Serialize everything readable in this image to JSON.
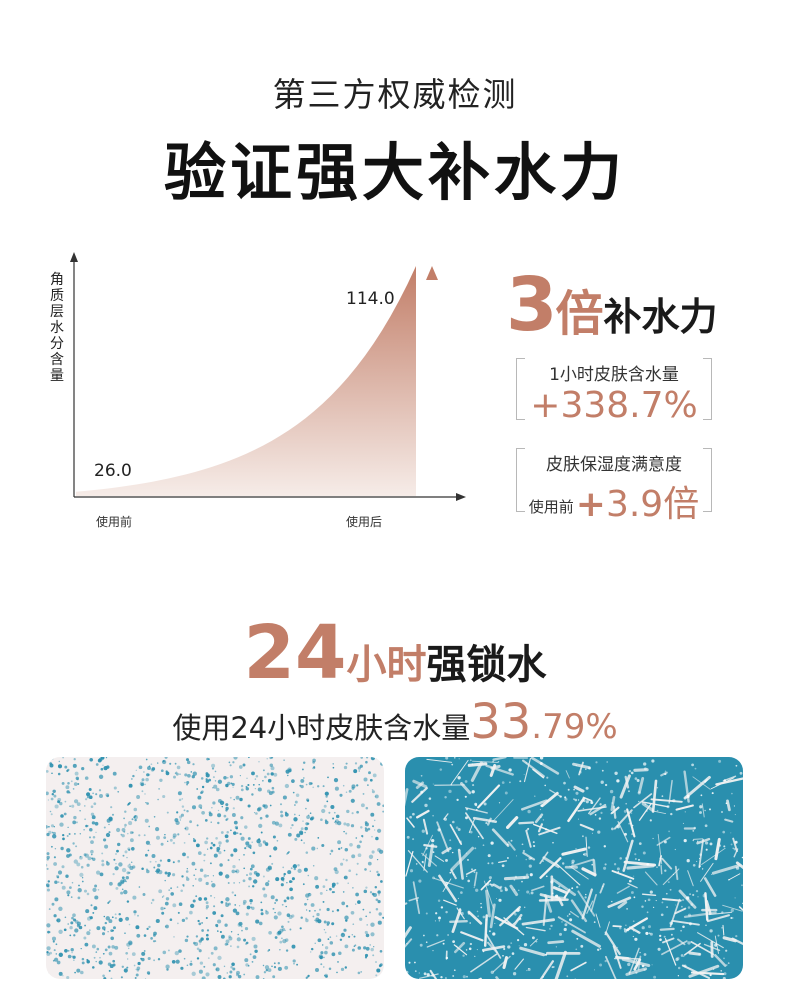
{
  "header": {
    "subtitle": "第三方权威检测",
    "title": "验证强大补水力"
  },
  "chart_data": {
    "type": "area",
    "ylabel": "角质层水分含量",
    "categories": [
      "使用前",
      "使用后"
    ],
    "values": [
      26.0,
      114.0
    ],
    "value_labels": [
      "26.0",
      "114.0"
    ],
    "trend": "exponential-increase",
    "fill_gradient": [
      "#c27e68",
      "#f6ece8"
    ],
    "grid": false
  },
  "stats": {
    "headline_number": "3",
    "headline_unit": "倍",
    "headline_text": "补水力",
    "box1": {
      "label": "1小时皮肤含水量",
      "value": "+338.7%"
    },
    "box2": {
      "label": "皮肤保湿度满意度",
      "prefix": "使用前",
      "plus": "+",
      "value": "3.9倍"
    }
  },
  "lock": {
    "number": "24",
    "accent": "小时",
    "text": "强锁水",
    "sub_text": "使用24小时皮肤含水量",
    "sub_value_big": "33",
    "sub_value_small": ".79%"
  },
  "colors": {
    "accent": "#c27e68",
    "dark": "#1a1a1a",
    "skin_blue": "#2a8fae"
  },
  "images": {
    "before_skin": "sparse-moisture-skin-image",
    "after_skin": "dense-moisture-skin-image"
  }
}
